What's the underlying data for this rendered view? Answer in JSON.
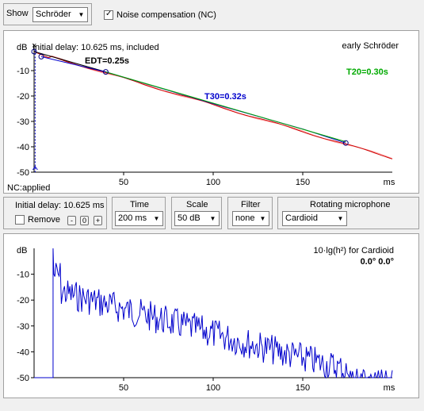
{
  "top": {
    "show_label": "Show",
    "show_value": "Schröder",
    "nc_label": "Noise compensation (NC)",
    "nc_checked": true
  },
  "chart1": {
    "db_label": "dB",
    "initial_delay": "Initial delay: 10.625 ms, included",
    "title_right": "early Schröder",
    "edt": "EDT=0.25s",
    "t30": "T30=0.32s",
    "t20": "T20=0.30s",
    "nc_applied": "NC:applied",
    "x_unit": "ms",
    "x_ticks": [
      "50",
      "100",
      "150"
    ],
    "y_ticks": [
      "-10",
      "-20",
      "-30",
      "-40",
      "-50"
    ],
    "colors": {
      "edt": "#000000",
      "t30": "#0000cc",
      "t20": "#00aa00",
      "curve": "#cc0000"
    }
  },
  "controls": {
    "initial_delay_label": "Initial delay: 10.625 ms",
    "remove_label": "Remove",
    "minus": "-",
    "count": "0",
    "plus": "+",
    "time_label": "Time",
    "time_value": "200 ms",
    "scale_label": "Scale",
    "scale_value": "50 dB",
    "filter_label": "Filter",
    "filter_value": "none",
    "mic_label": "Rotating microphone",
    "mic_value": "Cardioid"
  },
  "chart2": {
    "db_label": "dB",
    "title_right": "10·lg(h²) for Cardioid",
    "angles": "0.0° 0.0°",
    "x_unit": "ms",
    "x_ticks": [
      "50",
      "100",
      "150"
    ],
    "y_ticks": [
      "-10",
      "-20",
      "-30",
      "-40",
      "-50"
    ]
  },
  "chart_data": [
    {
      "type": "line",
      "title": "early Schröder",
      "ylabel": "dB",
      "xlabel": "ms",
      "xlim": [
        0,
        200
      ],
      "ylim": [
        -50,
        0
      ],
      "series": [
        {
          "name": "EDT=0.25s",
          "x": [
            0,
            40
          ],
          "y": [
            -2.5,
            -10.5
          ]
        },
        {
          "name": "T30=0.32s",
          "x": [
            4,
            40,
            100,
            150,
            174
          ],
          "y": [
            -4.5,
            -10.5,
            -23,
            -33,
            -38.5
          ]
        },
        {
          "name": "T20=0.30s",
          "x": [
            40,
            174
          ],
          "y": [
            -10.5,
            -38
          ]
        }
      ]
    },
    {
      "type": "line",
      "title": "10·lg(h²) for Cardioid",
      "ylabel": "dB",
      "xlabel": "ms",
      "xlim": [
        0,
        200
      ],
      "ylim": [
        -50,
        0
      ]
    }
  ]
}
